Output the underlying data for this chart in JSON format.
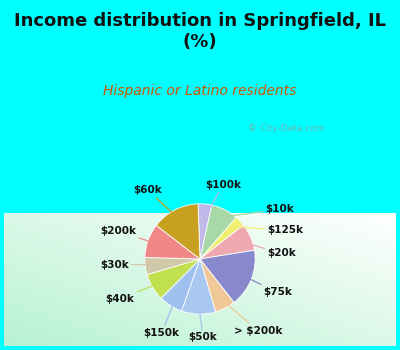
{
  "title": "Income distribution in Springfield, IL\n(%)",
  "subtitle": "Hispanic or Latino residents",
  "title_color": "#111111",
  "subtitle_color": "#cc5500",
  "bg_cyan": "#00ffff",
  "watermark": "City-Data.com",
  "labels": [
    "$100k",
    "$10k",
    "$125k",
    "$20k",
    "$75k",
    "> $200k",
    "$50k",
    "$150k",
    "$40k",
    "$30k",
    "$200k",
    "$60k"
  ],
  "sizes": [
    4,
    8,
    3,
    8,
    17,
    6,
    10,
    7,
    8,
    5,
    10,
    14
  ],
  "colors": [
    "#c0b8e8",
    "#a8d8a8",
    "#f0f070",
    "#f0a8b0",
    "#8888cc",
    "#f0c898",
    "#a8c8f0",
    "#a0c0f0",
    "#c0e050",
    "#d0c8a8",
    "#f08888",
    "#c8a020"
  ],
  "label_fontsize": 7.5,
  "pie_startangle": 92,
  "title_fontsize": 13,
  "subtitle_fontsize": 10
}
